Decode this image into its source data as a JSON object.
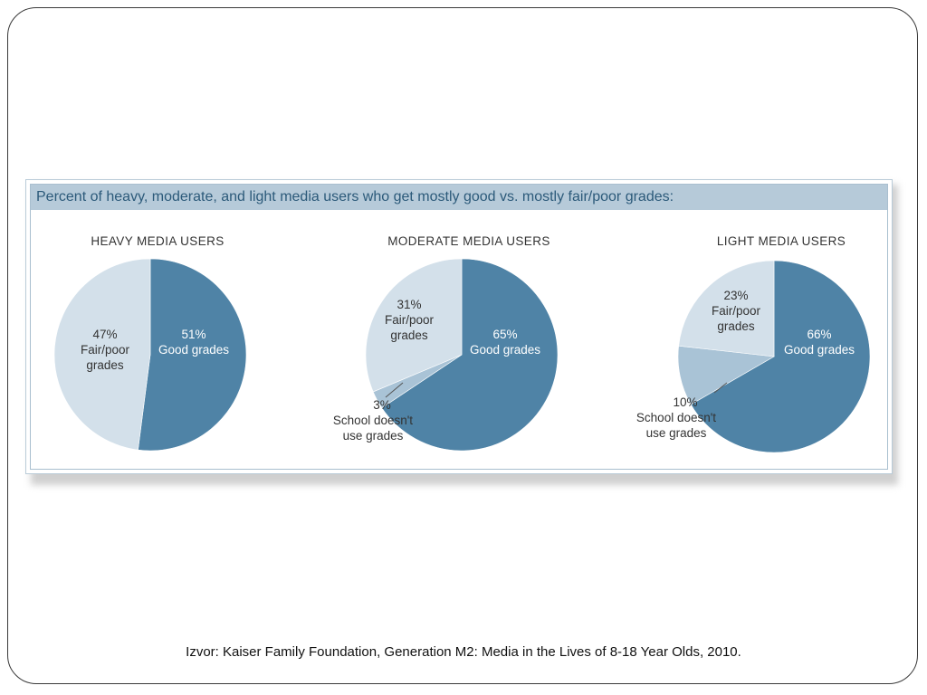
{
  "header": {
    "title": "Percent of heavy, moderate, and light media users who get mostly good vs. mostly fair/poor grades:"
  },
  "colors": {
    "good": "#4f83a6",
    "fair_poor": "#d3e0ea",
    "no_grades": "#a9c3d6",
    "title_bar": "#b6cad9",
    "title_text": "#2c5a7a",
    "pie_title": "#333333",
    "label_dark": "#333333",
    "label_light": "#ffffff"
  },
  "chart_data": [
    {
      "type": "pie",
      "title": "HEAVY MEDIA USERS",
      "slices": [
        {
          "key": "good",
          "value": 51,
          "percent": "51%",
          "label": "Good grades"
        },
        {
          "key": "fair_poor",
          "value": 47,
          "percent": "47%",
          "label": "Fair/poor grades"
        }
      ]
    },
    {
      "type": "pie",
      "title": "MODERATE MEDIA USERS",
      "slices": [
        {
          "key": "good",
          "value": 65,
          "percent": "65%",
          "label": "Good grades"
        },
        {
          "key": "no_grades",
          "value": 3,
          "percent": "3%",
          "label": "School doesn't use grades"
        },
        {
          "key": "fair_poor",
          "value": 31,
          "percent": "31%",
          "label": "Fair/poor grades"
        }
      ]
    },
    {
      "type": "pie",
      "title": "LIGHT MEDIA USERS",
      "slices": [
        {
          "key": "good",
          "value": 66,
          "percent": "66%",
          "label": "Good grades"
        },
        {
          "key": "no_grades",
          "value": 10,
          "percent": "10%",
          "label": "School doesn't use grades"
        },
        {
          "key": "fair_poor",
          "value": 23,
          "percent": "23%",
          "label": "Fair/poor grades"
        }
      ]
    }
  ],
  "source": "Izvor: Kaiser Family Foundation, Generation M2: Media in the Lives of 8-18  Year Olds, 2010."
}
